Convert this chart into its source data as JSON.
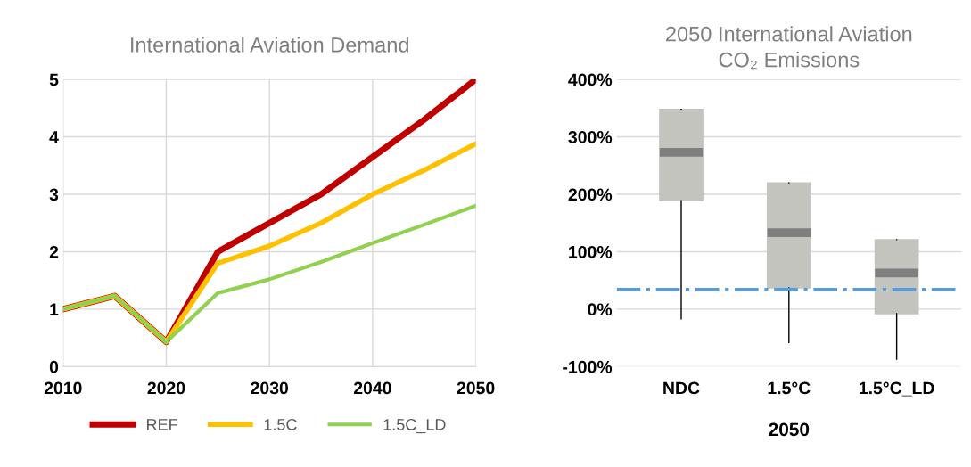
{
  "chart_data": [
    {
      "type": "line",
      "title": "International Aviation Demand",
      "x": [
        2010,
        2015,
        2020,
        2025,
        2030,
        2035,
        2040,
        2045,
        2050
      ],
      "series": [
        {
          "name": "REF",
          "color": "#c00000",
          "values": [
            1.0,
            1.23,
            0.43,
            2.0,
            2.5,
            3.0,
            3.65,
            4.3,
            5.0
          ]
        },
        {
          "name": "1.5C",
          "color": "#ffc000",
          "values": [
            1.0,
            1.23,
            0.43,
            1.8,
            2.1,
            2.5,
            3.0,
            3.42,
            3.88
          ]
        },
        {
          "name": "1.5C_LD",
          "color": "#92d050",
          "values": [
            1.0,
            1.23,
            0.43,
            1.28,
            1.52,
            1.82,
            2.15,
            2.47,
            2.8
          ]
        }
      ],
      "xlim": [
        2010,
        2050
      ],
      "xticks": [
        2010,
        2020,
        2030,
        2040,
        2050
      ],
      "ylim": [
        0,
        5
      ],
      "yticks": [
        0,
        1,
        2,
        3,
        4,
        5
      ],
      "grid": true,
      "legend": "bottom",
      "marker": "none",
      "line_style": "solid"
    },
    {
      "type": "box",
      "title": "2050 International Aviation\nCO₂ Emissions",
      "xlabel": "2050",
      "categories": [
        "NDC",
        "1.5°C",
        "1.5°C_LD"
      ],
      "boxes": [
        {
          "low": -17,
          "q1": 189,
          "median": 273,
          "q3": 348,
          "high": 348
        },
        {
          "low": -58,
          "q1": 37,
          "median": 133,
          "q3": 220,
          "high": 220
        },
        {
          "low": -87,
          "q1": -8,
          "median": 63,
          "q3": 121,
          "high": 121
        }
      ],
      "ylim": [
        -100,
        400
      ],
      "yticks": [
        {
          "value": -100,
          "label": "-100%"
        },
        {
          "value": 0,
          "label": "0%"
        },
        {
          "value": 100,
          "label": "100%"
        },
        {
          "value": 200,
          "label": "200%"
        },
        {
          "value": 300,
          "label": "300%"
        },
        {
          "value": 400,
          "label": "400%"
        }
      ],
      "grid": "y",
      "ref_lines": [
        {
          "axis": "y",
          "value": 34,
          "color": "#5b9bd5",
          "line_style": "dashdot"
        }
      ]
    }
  ]
}
